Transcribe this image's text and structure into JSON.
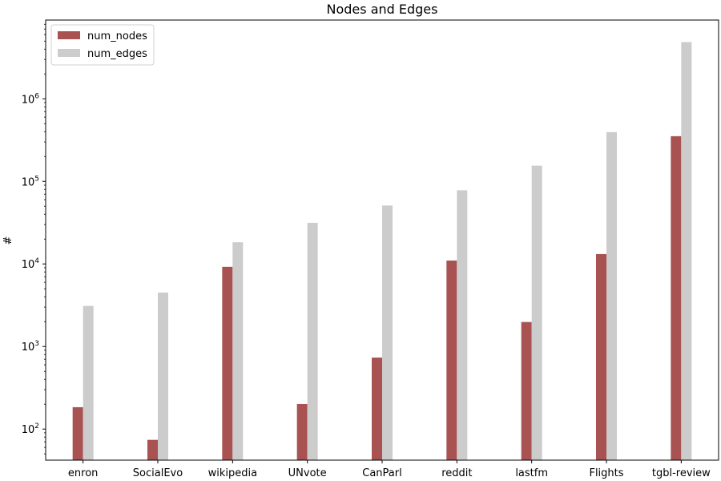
{
  "chart_data": {
    "type": "bar",
    "title": "Nodes and Edges",
    "xlabel": "",
    "ylabel": "#",
    "yscale": "log",
    "ylim": [
      42,
      9000000
    ],
    "grid": false,
    "legend_placement": "top-left",
    "categories": [
      "enron",
      "SocialEvo",
      "wikipedia",
      "UNvote",
      "CanParl",
      "reddit",
      "lastfm",
      "Flights",
      "tgbl-review"
    ],
    "series": [
      {
        "name": "num_nodes",
        "color": "#a85252",
        "values": [
          184,
          74,
          9227,
          201,
          734,
          10984,
          1980,
          13169,
          352637
        ]
      },
      {
        "name": "num_edges",
        "color": "#cccccc",
        "values": [
          3100,
          4500,
          18300,
          31500,
          51000,
          78000,
          155000,
          395000,
          4870000
        ]
      }
    ],
    "y_ticks": [
      {
        "base": "10",
        "exp": "2"
      },
      {
        "base": "10",
        "exp": "3"
      },
      {
        "base": "10",
        "exp": "4"
      },
      {
        "base": "10",
        "exp": "5"
      },
      {
        "base": "10",
        "exp": "6"
      }
    ]
  }
}
